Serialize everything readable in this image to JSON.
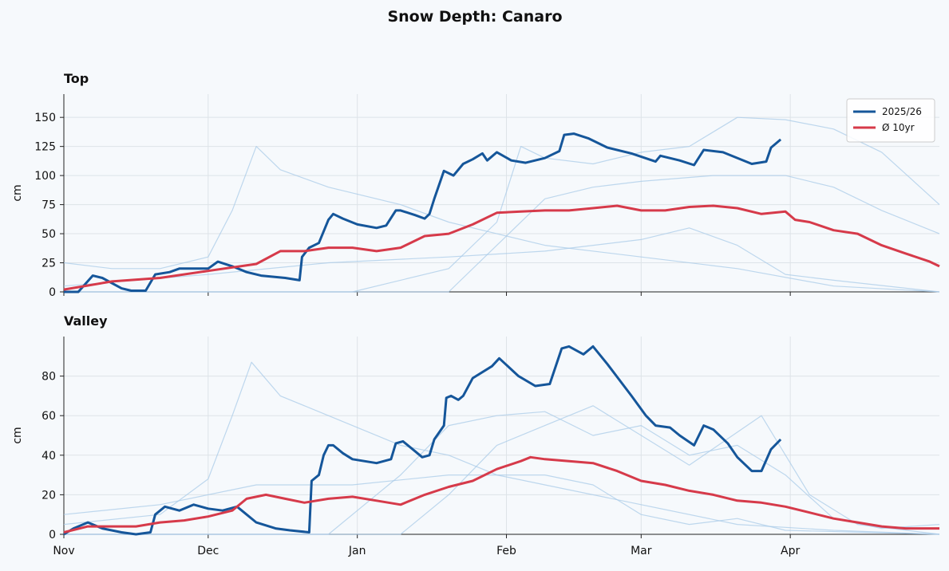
{
  "title": "Snow Depth: Canaro",
  "chart_data": [
    {
      "type": "line",
      "title": "Top",
      "ylabel": "cm",
      "xlim": [
        0,
        182
      ],
      "ylim": [
        0,
        170
      ],
      "yticks": [
        0,
        25,
        50,
        75,
        100,
        125,
        150
      ],
      "grid": true,
      "legend": "upper right",
      "series": [
        {
          "color": "#a9cbe8",
          "x": [
            0,
            10,
            20,
            30,
            35,
            40,
            45,
            55,
            70,
            80,
            90,
            100,
            120,
            140,
            160,
            182
          ],
          "values": [
            25,
            20,
            20,
            30,
            70,
            125,
            105,
            90,
            75,
            60,
            50,
            40,
            30,
            20,
            5,
            0
          ]
        },
        {
          "color": "#a9cbe8",
          "x": [
            0,
            60,
            80,
            90,
            95,
            100,
            110,
            120,
            130,
            140,
            150,
            160,
            170,
            182
          ],
          "values": [
            0,
            0,
            20,
            60,
            125,
            115,
            110,
            120,
            125,
            150,
            148,
            140,
            120,
            75
          ]
        },
        {
          "color": "#a9cbe8",
          "x": [
            0,
            30,
            55,
            80,
            100,
            120,
            130,
            140,
            150,
            160,
            182
          ],
          "values": [
            5,
            15,
            25,
            30,
            35,
            45,
            55,
            40,
            15,
            10,
            0
          ]
        },
        {
          "color": "#a9cbe8",
          "x": [
            0,
            80,
            90,
            100,
            110,
            120,
            135,
            150,
            160,
            170,
            182
          ],
          "values": [
            0,
            0,
            40,
            80,
            90,
            95,
            100,
            100,
            90,
            70,
            50
          ]
        },
        {
          "name": "2025/26",
          "color": "#15569a",
          "x": [
            0,
            3,
            6,
            8,
            12,
            14,
            17,
            19,
            22,
            24,
            30,
            32,
            35,
            38,
            41,
            46,
            49,
            49.5,
            51,
            53,
            55,
            56,
            58,
            61,
            65,
            67,
            69,
            70,
            73,
            75,
            76,
            77,
            79,
            81,
            83,
            85,
            87,
            88,
            90,
            93,
            96,
            100,
            103,
            104,
            106,
            109,
            113,
            118,
            123,
            124,
            128,
            131,
            133,
            137,
            143,
            146,
            147,
            149
          ],
          "values": [
            0,
            0,
            14,
            12,
            3,
            1,
            1,
            15,
            17,
            20,
            20,
            26,
            22,
            17,
            14,
            12,
            10,
            30,
            38,
            42,
            62,
            67,
            63,
            58,
            55,
            57,
            70,
            70,
            66,
            63,
            67,
            80,
            104,
            100,
            110,
            114,
            119,
            113,
            120,
            113,
            111,
            115,
            121,
            135,
            136,
            132,
            124,
            119,
            112,
            117,
            113,
            109,
            122,
            120,
            110,
            112,
            124,
            131
          ]
        },
        {
          "name": "Ø 10yr",
          "color": "#d63a4a",
          "x": [
            0,
            10,
            20,
            30,
            40,
            45,
            50,
            55,
            60,
            65,
            70,
            75,
            80,
            85,
            90,
            95,
            100,
            105,
            110,
            115,
            120,
            125,
            130,
            135,
            140,
            145,
            150,
            152,
            155,
            160,
            165,
            170,
            175,
            180,
            182
          ],
          "values": [
            2,
            9,
            12,
            18,
            24,
            35,
            35,
            38,
            38,
            35,
            38,
            48,
            50,
            58,
            68,
            69,
            70,
            70,
            72,
            74,
            70,
            70,
            73,
            74,
            72,
            67,
            69,
            62,
            60,
            53,
            50,
            40,
            33,
            26,
            22
          ]
        }
      ]
    },
    {
      "type": "line",
      "title": "Valley",
      "ylabel": "cm",
      "xlim": [
        0,
        182
      ],
      "ylim": [
        0,
        100
      ],
      "yticks": [
        0,
        20,
        40,
        60,
        80
      ],
      "grid": true,
      "xticks": [
        {
          "value": 0,
          "label": "Nov"
        },
        {
          "value": 30,
          "label": "Dec"
        },
        {
          "value": 61,
          "label": "Jan"
        },
        {
          "value": 92,
          "label": "Feb"
        },
        {
          "value": 120,
          "label": "Mar"
        },
        {
          "value": 151,
          "label": "Apr"
        }
      ],
      "series": [
        {
          "color": "#a9cbe8",
          "x": [
            0,
            20,
            30,
            35,
            39,
            45,
            55,
            70,
            80,
            90,
            100,
            120,
            140,
            160,
            182
          ],
          "values": [
            5,
            10,
            28,
            60,
            87,
            70,
            60,
            45,
            40,
            30,
            25,
            15,
            5,
            2,
            0
          ]
        },
        {
          "color": "#a9cbe8",
          "x": [
            0,
            55,
            70,
            80,
            90,
            100,
            110,
            120,
            130,
            140,
            150,
            160,
            170,
            182
          ],
          "values": [
            0,
            0,
            30,
            55,
            60,
            62,
            50,
            55,
            40,
            45,
            30,
            8,
            3,
            5
          ]
        },
        {
          "color": "#a9cbe8",
          "x": [
            0,
            20,
            40,
            60,
            80,
            100,
            110,
            120,
            130,
            140,
            150,
            182
          ],
          "values": [
            10,
            15,
            25,
            25,
            30,
            30,
            25,
            10,
            5,
            8,
            2,
            0
          ]
        },
        {
          "color": "#a9cbe8",
          "x": [
            0,
            70,
            80,
            90,
            100,
            110,
            120,
            130,
            145,
            155,
            165,
            182
          ],
          "values": [
            0,
            0,
            20,
            45,
            55,
            65,
            50,
            35,
            60,
            20,
            5,
            0
          ]
        },
        {
          "name": "2025/26",
          "color": "#15569a",
          "x": [
            0,
            2,
            5,
            8,
            12,
            15,
            18,
            19,
            21,
            24,
            27,
            30,
            33,
            36,
            38,
            40,
            44,
            47,
            51,
            51.5,
            53,
            54,
            55,
            56,
            58,
            60,
            65,
            68,
            69,
            70.5,
            73,
            74.5,
            76,
            77,
            79,
            79.5,
            80.5,
            82,
            83,
            85,
            89,
            90.5,
            94.5,
            98,
            101,
            103.5,
            105,
            108,
            110,
            113,
            118,
            121,
            123,
            126,
            128,
            131,
            133,
            135,
            138,
            140,
            143,
            145,
            147,
            149
          ],
          "values": [
            0,
            3,
            6,
            3,
            1,
            0,
            1,
            10,
            14,
            12,
            15,
            13,
            12,
            14,
            10,
            6,
            3,
            2,
            1,
            27,
            30,
            40,
            45,
            45,
            41,
            38,
            36,
            38,
            46,
            47,
            42,
            39,
            40,
            48,
            55,
            69,
            70,
            68,
            70,
            79,
            85,
            89,
            80,
            75,
            76,
            94,
            95,
            91,
            95,
            86,
            70,
            60,
            55,
            54,
            50,
            45,
            55,
            53,
            46,
            39,
            32,
            32,
            43,
            48
          ]
        },
        {
          "name": "Ø 10yr",
          "color": "#d63a4a",
          "x": [
            0,
            5,
            10,
            15,
            20,
            25,
            30,
            35,
            38,
            42,
            46,
            50,
            55,
            60,
            65,
            70,
            75,
            80,
            85,
            90,
            95,
            97,
            100,
            105,
            110,
            115,
            120,
            125,
            130,
            135,
            140,
            145,
            150,
            155,
            160,
            165,
            170,
            175,
            180,
            182
          ],
          "values": [
            1,
            4,
            4,
            4,
            6,
            7,
            9,
            12,
            18,
            20,
            18,
            16,
            18,
            19,
            17,
            15,
            20,
            24,
            27,
            33,
            37,
            39,
            38,
            37,
            36,
            32,
            27,
            25,
            22,
            20,
            17,
            16,
            14,
            11,
            8,
            6,
            4,
            3,
            3,
            3
          ]
        }
      ]
    }
  ]
}
